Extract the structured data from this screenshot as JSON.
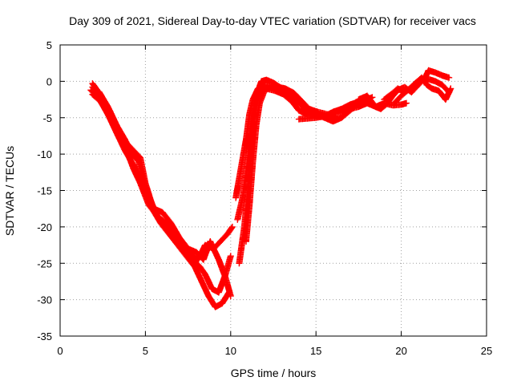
{
  "chart_data": {
    "type": "scatter",
    "title": "Day 309 of 2021, Sidereal Day-to-day VTEC variation (SDTVAR) for receiver vacs",
    "xlabel": "GPS time / hours",
    "ylabel": "SDTVAR / TECUs",
    "xlim": [
      0,
      25
    ],
    "ylim": [
      -35,
      5
    ],
    "xticks": [
      0,
      5,
      10,
      15,
      20,
      25
    ],
    "yticks": [
      -35,
      -30,
      -25,
      -20,
      -15,
      -10,
      -5,
      0,
      5
    ],
    "grid": true,
    "marker": "+",
    "series_color": "#ff0000",
    "tracks": [
      [
        [
          1.8,
          -1.2
        ],
        [
          2.3,
          -2.5
        ],
        [
          2.8,
          -4.5
        ],
        [
          3.3,
          -7.0
        ],
        [
          3.8,
          -9.5
        ],
        [
          4.3,
          -11.5
        ],
        [
          4.7,
          -13.5
        ],
        [
          5.0,
          -15.0
        ],
        [
          5.4,
          -17.5
        ],
        [
          5.9,
          -19.5
        ],
        [
          6.4,
          -21.0
        ],
        [
          6.9,
          -22.5
        ],
        [
          7.4,
          -24.0
        ],
        [
          7.9,
          -25.5
        ],
        [
          8.3,
          -27.5
        ],
        [
          8.7,
          -29.5
        ],
        [
          9.1,
          -31.0
        ],
        [
          9.5,
          -30.5
        ],
        [
          9.9,
          -29.0
        ]
      ],
      [
        [
          1.9,
          -0.3
        ],
        [
          2.4,
          -2.0
        ],
        [
          2.9,
          -4.0
        ],
        [
          3.4,
          -6.5
        ],
        [
          3.9,
          -8.5
        ],
        [
          4.3,
          -9.5
        ],
        [
          4.7,
          -10.5
        ],
        [
          5.0,
          -14.0
        ],
        [
          5.4,
          -17.0
        ],
        [
          5.8,
          -19.0
        ],
        [
          6.3,
          -20.0
        ],
        [
          6.8,
          -21.5
        ],
        [
          7.3,
          -23.0
        ],
        [
          7.8,
          -24.5
        ],
        [
          8.2,
          -25.5
        ],
        [
          8.5,
          -26.5
        ],
        [
          8.9,
          -28.5
        ],
        [
          9.3,
          -29.0
        ],
        [
          9.7,
          -26.5
        ],
        [
          10.0,
          -24.0
        ]
      ],
      [
        [
          1.9,
          -1.8
        ],
        [
          2.4,
          -2.8
        ],
        [
          2.9,
          -5.0
        ],
        [
          3.4,
          -7.5
        ],
        [
          3.9,
          -9.5
        ],
        [
          4.3,
          -12.0
        ],
        [
          4.7,
          -14.0
        ],
        [
          5.2,
          -17.0
        ],
        [
          5.7,
          -18.5
        ],
        [
          6.2,
          -19.5
        ],
        [
          6.7,
          -21.0
        ],
        [
          7.2,
          -22.5
        ],
        [
          7.7,
          -24.0
        ],
        [
          8.1,
          -24.5
        ],
        [
          8.5,
          -22.5
        ],
        [
          9.0,
          -23.0
        ],
        [
          9.4,
          -22.0
        ],
        [
          9.8,
          -21.0
        ],
        [
          10.1,
          -20.0
        ]
      ],
      [
        [
          1.9,
          -0.8
        ],
        [
          2.3,
          -1.5
        ],
        [
          2.8,
          -3.5
        ],
        [
          3.3,
          -6.0
        ],
        [
          3.8,
          -8.0
        ],
        [
          4.2,
          -10.0
        ],
        [
          4.6,
          -11.0
        ],
        [
          5.0,
          -14.5
        ],
        [
          5.5,
          -17.5
        ],
        [
          6.0,
          -18.0
        ],
        [
          6.5,
          -19.5
        ],
        [
          7.0,
          -21.5
        ],
        [
          7.5,
          -23.0
        ],
        [
          8.0,
          -23.5
        ],
        [
          8.4,
          -24.5
        ],
        [
          8.8,
          -22.0
        ],
        [
          9.3,
          -24.5
        ],
        [
          9.7,
          -27.0
        ],
        [
          10.0,
          -29.5
        ]
      ],
      [
        [
          10.3,
          -16.0
        ],
        [
          10.6,
          -12.0
        ],
        [
          10.9,
          -8.0
        ],
        [
          11.1,
          -4.5
        ],
        [
          11.3,
          -2.5
        ],
        [
          11.6,
          -1.0
        ],
        [
          12.0,
          -0.5
        ],
        [
          12.5,
          -0.8
        ],
        [
          13.0,
          -1.2
        ],
        [
          13.5,
          -2.0
        ],
        [
          14.0,
          -3.0
        ],
        [
          14.5,
          -4.0
        ],
        [
          15.0,
          -4.5
        ],
        [
          15.5,
          -5.0
        ],
        [
          16.0,
          -5.5
        ],
        [
          16.5,
          -5.0
        ],
        [
          17.0,
          -4.0
        ],
        [
          17.5,
          -3.0
        ],
        [
          18.0,
          -2.5
        ],
        [
          18.3,
          -2.2
        ]
      ],
      [
        [
          10.5,
          -25.0
        ],
        [
          10.8,
          -20.0
        ],
        [
          11.0,
          -15.0
        ],
        [
          11.2,
          -9.0
        ],
        [
          11.4,
          -4.0
        ],
        [
          11.7,
          -1.5
        ],
        [
          12.1,
          -1.0
        ],
        [
          12.6,
          -1.3
        ],
        [
          13.1,
          -1.8
        ],
        [
          13.6,
          -2.8
        ],
        [
          14.0,
          -4.0
        ],
        [
          14.5,
          -4.6
        ],
        [
          15.0,
          -4.8
        ],
        [
          15.5,
          -4.8
        ],
        [
          16.0,
          -4.2
        ],
        [
          16.5,
          -3.8
        ],
        [
          17.0,
          -3.2
        ],
        [
          17.5,
          -2.8
        ],
        [
          18.0,
          -2.2
        ]
      ],
      [
        [
          10.4,
          -19.0
        ],
        [
          10.7,
          -16.0
        ],
        [
          11.0,
          -11.0
        ],
        [
          11.2,
          -6.0
        ],
        [
          11.5,
          -2.0
        ],
        [
          11.8,
          0.0
        ],
        [
          12.1,
          0.2
        ],
        [
          12.5,
          -0.2
        ],
        [
          13.0,
          -1.0
        ],
        [
          13.5,
          -1.5
        ],
        [
          14.0,
          -2.5
        ],
        [
          14.3,
          -3.8
        ],
        [
          14.8,
          -4.6
        ],
        [
          15.3,
          -4.7
        ],
        [
          15.8,
          -4.9
        ],
        [
          16.2,
          -5.0
        ]
      ],
      [
        [
          10.9,
          -22.0
        ],
        [
          11.1,
          -17.0
        ],
        [
          11.3,
          -11.0
        ],
        [
          11.5,
          -6.0
        ],
        [
          11.7,
          -3.0
        ],
        [
          12.0,
          -1.2
        ],
        [
          12.4,
          -0.8
        ],
        [
          12.8,
          -0.8
        ],
        [
          13.2,
          -1.0
        ],
        [
          13.7,
          -1.6
        ],
        [
          14.2,
          -2.8
        ],
        [
          14.6,
          -3.8
        ],
        [
          15.1,
          -4.2
        ],
        [
          15.6,
          -4.5
        ],
        [
          16.1,
          -4.8
        ]
      ],
      [
        [
          14.0,
          -5.2
        ],
        [
          14.5,
          -5.1
        ],
        [
          15.0,
          -5.0
        ],
        [
          15.5,
          -4.8
        ],
        [
          16.0,
          -4.5
        ],
        [
          16.5,
          -4.2
        ],
        [
          17.0,
          -3.8
        ],
        [
          17.5,
          -3.5
        ],
        [
          18.0,
          -3.0
        ],
        [
          18.5,
          -3.5
        ],
        [
          19.0,
          -3.0
        ],
        [
          19.5,
          -3.3
        ],
        [
          20.0,
          -3.2
        ],
        [
          20.3,
          -3.0
        ]
      ],
      [
        [
          17.5,
          -2.5
        ],
        [
          18.0,
          -2.0
        ],
        [
          18.5,
          -3.5
        ],
        [
          18.8,
          -3.8
        ],
        [
          19.2,
          -3.0
        ],
        [
          19.5,
          -2.0
        ],
        [
          19.8,
          -1.2
        ],
        [
          20.2,
          -0.8
        ],
        [
          20.6,
          -1.5
        ],
        [
          21.0,
          -0.5
        ],
        [
          21.4,
          0.5
        ],
        [
          21.6,
          1.5
        ],
        [
          22.0,
          1.2
        ],
        [
          22.4,
          0.8
        ],
        [
          22.8,
          0.5
        ]
      ],
      [
        [
          19.0,
          -2.5
        ],
        [
          19.4,
          -1.8
        ],
        [
          19.8,
          -1.0
        ],
        [
          20.2,
          -1.5
        ],
        [
          20.5,
          -1.0
        ],
        [
          20.8,
          -0.5
        ],
        [
          21.2,
          0.2
        ],
        [
          21.6,
          0.3
        ],
        [
          22.0,
          0.0
        ],
        [
          22.4,
          -0.5
        ],
        [
          22.8,
          -1.5
        ]
      ],
      [
        [
          19.6,
          -3.0
        ],
        [
          20.0,
          -2.0
        ],
        [
          20.4,
          -1.2
        ],
        [
          20.8,
          -0.3
        ],
        [
          21.2,
          0.5
        ],
        [
          21.5,
          -0.5
        ],
        [
          21.8,
          -1.0
        ],
        [
          22.2,
          -1.3
        ],
        [
          22.6,
          -2.5
        ],
        [
          22.9,
          -1.0
        ]
      ]
    ]
  }
}
